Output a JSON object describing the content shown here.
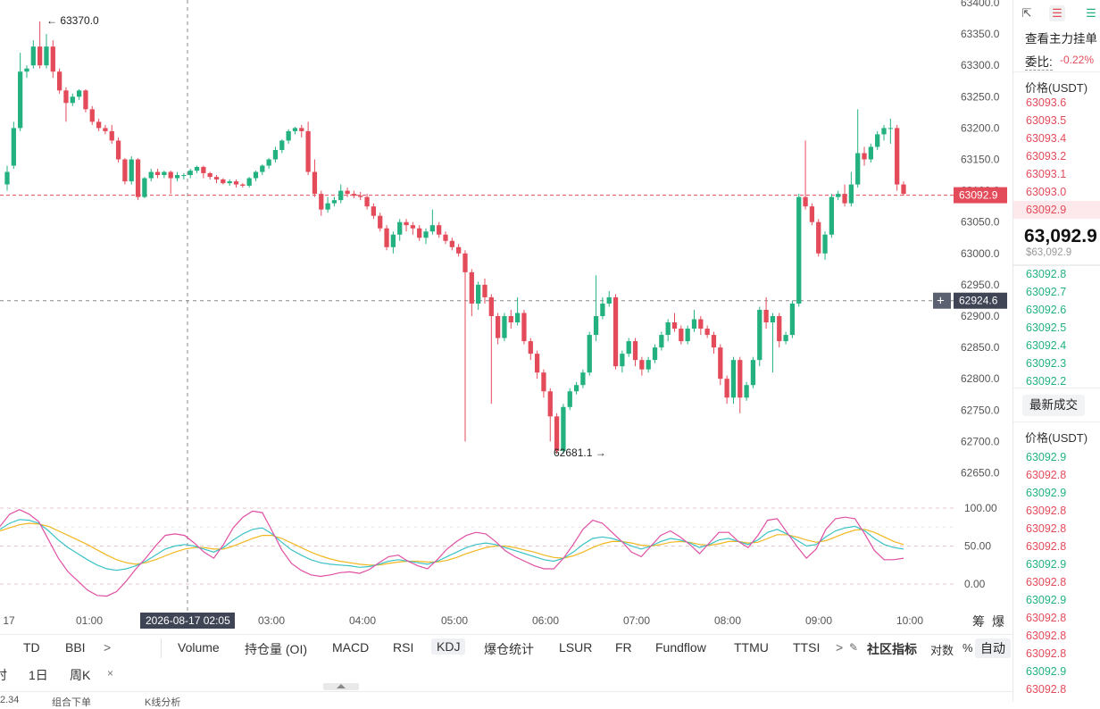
{
  "chart_data": {
    "type": "candlestick",
    "y_range": [
      62620,
      63400
    ],
    "y_ticks": [
      "63400.0",
      "63350.0",
      "63300.0",
      "63250.0",
      "63200.0",
      "63150.0",
      "63100.0",
      "63050.0",
      "63000.0",
      "62950.0",
      "62900.0",
      "62850.0",
      "62800.0",
      "62750.0",
      "62700.0",
      "62650.0"
    ],
    "x_ticks": [
      "17",
      "01:00",
      "02:00",
      "03:00",
      "04:00",
      "05:00",
      "06:00",
      "07:00",
      "08:00",
      "09:00",
      "10:00"
    ],
    "crosshair_time": "2026-08-17 02:05",
    "crosshair_price": "62924.6",
    "last_price_label": "63092.9",
    "high_label": "63370.0",
    "low_label": "62681.1",
    "candles": [
      [
        63110,
        63130,
        63100,
        63140
      ],
      [
        63140,
        63200,
        63135,
        63210
      ],
      [
        63200,
        63290,
        63195,
        63320
      ],
      [
        63290,
        63295,
        63280,
        63300
      ],
      [
        63300,
        63330,
        63295,
        63340
      ],
      [
        63330,
        63300,
        63295,
        63370
      ],
      [
        63300,
        63330,
        63295,
        63350
      ],
      [
        63330,
        63290,
        63280,
        63340
      ],
      [
        63290,
        63260,
        63255,
        63295
      ],
      [
        63260,
        63240,
        63210,
        63265
      ],
      [
        63240,
        63250,
        63235,
        63255
      ],
      [
        63250,
        63260,
        63245,
        63262
      ],
      [
        63260,
        63230,
        63225,
        63262
      ],
      [
        63230,
        63210,
        63205,
        63235
      ],
      [
        63210,
        63200,
        63195,
        63215
      ],
      [
        63200,
        63195,
        63190,
        63205
      ],
      [
        63195,
        63180,
        63175,
        63205
      ],
      [
        63180,
        63150,
        63145,
        63185
      ],
      [
        63150,
        63115,
        63110,
        63152
      ],
      [
        63115,
        63150,
        63110,
        63155
      ],
      [
        63150,
        63090,
        63085,
        63152
      ],
      [
        63090,
        63120,
        63088,
        63122
      ],
      [
        63120,
        63130,
        63115,
        63135
      ],
      [
        63130,
        63125,
        63120,
        63135
      ],
      [
        63125,
        63130,
        63120,
        63132
      ],
      [
        63130,
        63120,
        63095,
        63132
      ],
      [
        63120,
        63125,
        63115,
        63130
      ],
      [
        63125,
        63125,
        63118,
        63128
      ],
      [
        63125,
        63132,
        63120,
        63135
      ],
      [
        63132,
        63138,
        63128,
        63140
      ],
      [
        63138,
        63128,
        63120,
        63140
      ],
      [
        63128,
        63122,
        63118,
        63130
      ],
      [
        63122,
        63118,
        63112,
        63125
      ],
      [
        63118,
        63112,
        63110,
        63120
      ],
      [
        63112,
        63115,
        63108,
        63118
      ],
      [
        63115,
        63110,
        63105,
        63118
      ],
      [
        63110,
        63108,
        63105,
        63112
      ],
      [
        63108,
        63120,
        63105,
        63122
      ],
      [
        63120,
        63130,
        63115,
        63132
      ],
      [
        63130,
        63140,
        63125,
        63142
      ],
      [
        63140,
        63150,
        63135,
        63152
      ],
      [
        63150,
        63165,
        63145,
        63170
      ],
      [
        63165,
        63180,
        63160,
        63182
      ],
      [
        63180,
        63195,
        63175,
        63198
      ],
      [
        63195,
        63200,
        63190,
        63202
      ],
      [
        63200,
        63195,
        63185,
        63205
      ],
      [
        63195,
        63130,
        63125,
        63210
      ],
      [
        63130,
        63095,
        63090,
        63150
      ],
      [
        63095,
        63070,
        63060,
        63100
      ],
      [
        63070,
        63080,
        63065,
        63090
      ],
      [
        63080,
        63085,
        63075,
        63090
      ],
      [
        63085,
        63100,
        63080,
        63110
      ],
      [
        63100,
        63095,
        63090,
        63105
      ],
      [
        63095,
        63092,
        63088,
        63100
      ],
      [
        63092,
        63090,
        63085,
        63098
      ],
      [
        63090,
        63075,
        63070,
        63095
      ],
      [
        63075,
        63060,
        63055,
        63080
      ],
      [
        63060,
        63040,
        63035,
        63065
      ],
      [
        63040,
        63010,
        63005,
        63045
      ],
      [
        63010,
        63030,
        63000,
        63035
      ],
      [
        63030,
        63050,
        63020,
        63055
      ],
      [
        63050,
        63045,
        63035,
        63055
      ],
      [
        63045,
        63040,
        63030,
        63050
      ],
      [
        63040,
        63025,
        63020,
        63045
      ],
      [
        63025,
        63035,
        63015,
        63040
      ],
      [
        63035,
        63045,
        63030,
        63070
      ],
      [
        63045,
        63030,
        63025,
        63050
      ],
      [
        63030,
        63020,
        63015,
        63035
      ],
      [
        63020,
        63010,
        63005,
        63025
      ],
      [
        63010,
        63000,
        62995,
        63015
      ],
      [
        63000,
        62970,
        62700,
        63005
      ],
      [
        62970,
        62920,
        62900,
        62975
      ],
      [
        62920,
        62950,
        62910,
        62955
      ],
      [
        62950,
        62930,
        62920,
        62960
      ],
      [
        62930,
        62900,
        62760,
        62935
      ],
      [
        62900,
        62865,
        62855,
        62905
      ],
      [
        62865,
        62900,
        62860,
        62905
      ],
      [
        62900,
        62890,
        62880,
        62910
      ],
      [
        62890,
        62905,
        62885,
        62930
      ],
      [
        62905,
        62860,
        62855,
        62910
      ],
      [
        62860,
        62840,
        62830,
        62865
      ],
      [
        62840,
        62810,
        62800,
        62845
      ],
      [
        62810,
        62780,
        62770,
        62815
      ],
      [
        62780,
        62740,
        62700,
        62785
      ],
      [
        62740,
        62685,
        62680,
        62745
      ],
      [
        62685,
        62755,
        62680,
        62760
      ],
      [
        62755,
        62780,
        62750,
        62785
      ],
      [
        62780,
        62790,
        62775,
        62795
      ],
      [
        62790,
        62810,
        62785,
        62815
      ],
      [
        62810,
        62870,
        62805,
        62875
      ],
      [
        62870,
        62900,
        62860,
        62965
      ],
      [
        62900,
        62920,
        62895,
        62930
      ],
      [
        62920,
        62930,
        62915,
        62940
      ],
      [
        62930,
        62820,
        62815,
        62935
      ],
      [
        62820,
        62840,
        62810,
        62845
      ],
      [
        62840,
        62860,
        62835,
        62865
      ],
      [
        62860,
        62830,
        62820,
        62865
      ],
      [
        62830,
        62815,
        62805,
        62835
      ],
      [
        62815,
        62830,
        62810,
        62835
      ],
      [
        62830,
        62850,
        62825,
        62855
      ],
      [
        62850,
        62870,
        62845,
        62875
      ],
      [
        62870,
        62890,
        62860,
        62895
      ],
      [
        62890,
        62880,
        62875,
        62905
      ],
      [
        62880,
        62860,
        62855,
        62885
      ],
      [
        62860,
        62880,
        62855,
        62885
      ],
      [
        62880,
        62895,
        62875,
        62910
      ],
      [
        62895,
        62880,
        62870,
        62900
      ],
      [
        62880,
        62870,
        62865,
        62885
      ],
      [
        62870,
        62850,
        62840,
        62875
      ],
      [
        62850,
        62800,
        62790,
        62855
      ],
      [
        62800,
        62770,
        62760,
        62805
      ],
      [
        62770,
        62830,
        62760,
        62835
      ],
      [
        62830,
        62770,
        62745,
        62835
      ],
      [
        62770,
        62790,
        62765,
        62795
      ],
      [
        62790,
        62830,
        62785,
        62835
      ],
      [
        62830,
        62910,
        62820,
        62915
      ],
      [
        62910,
        62890,
        62880,
        62930
      ],
      [
        62890,
        62900,
        62810,
        62905
      ],
      [
        62900,
        62860,
        62850,
        62905
      ],
      [
        62860,
        62870,
        62855,
        62875
      ],
      [
        62870,
        62920,
        62865,
        62925
      ],
      [
        62920,
        63090,
        62915,
        63095
      ],
      [
        63090,
        63075,
        63070,
        63180
      ],
      [
        63075,
        63050,
        63045,
        63080
      ],
      [
        63050,
        63000,
        62995,
        63055
      ],
      [
        63000,
        63030,
        62990,
        63035
      ],
      [
        63030,
        63090,
        63025,
        63095
      ],
      [
        63090,
        63095,
        63085,
        63100
      ],
      [
        63095,
        63080,
        63075,
        63110
      ],
      [
        63080,
        63110,
        63075,
        63130
      ],
      [
        63110,
        63160,
        63105,
        63230
      ],
      [
        63160,
        63150,
        63140,
        63170
      ],
      [
        63150,
        63170,
        63145,
        63175
      ],
      [
        63170,
        63190,
        63165,
        63195
      ],
      [
        63190,
        63200,
        63180,
        63205
      ],
      [
        63200,
        63200,
        63175,
        63215
      ],
      [
        63200,
        63110,
        63100,
        63205
      ],
      [
        63110,
        63095,
        63092,
        63115
      ]
    ],
    "kdj": {
      "ticks": [
        "100.00",
        "50.00",
        "0.00"
      ],
      "k": [
        72,
        80,
        85,
        84,
        80,
        70,
        58,
        48,
        40,
        32,
        25,
        20,
        18,
        20,
        24,
        30,
        38,
        46,
        50,
        52,
        50,
        46,
        42,
        48,
        58,
        66,
        72,
        74,
        66,
        55,
        45,
        38,
        32,
        28,
        26,
        25,
        24,
        22,
        23,
        26,
        30,
        32,
        30,
        28,
        26,
        30,
        36,
        42,
        48,
        52,
        54,
        52,
        48,
        44,
        40,
        36,
        32,
        30,
        34,
        42,
        52,
        60,
        62,
        60,
        56,
        50,
        46,
        50,
        56,
        60,
        58,
        54,
        48,
        52,
        58,
        60,
        56,
        52,
        58,
        68,
        72,
        66,
        58,
        50,
        52,
        62,
        70,
        74,
        76,
        70,
        60,
        52,
        48,
        46
      ],
      "d": [
        70,
        74,
        78,
        80,
        79,
        76,
        70,
        64,
        58,
        52,
        45,
        38,
        32,
        28,
        26,
        28,
        32,
        37,
        42,
        46,
        48,
        48,
        46,
        46,
        50,
        55,
        60,
        64,
        64,
        60,
        54,
        48,
        42,
        37,
        33,
        30,
        28,
        26,
        25,
        25,
        27,
        29,
        30,
        30,
        29,
        29,
        31,
        35,
        40,
        44,
        48,
        50,
        50,
        48,
        45,
        42,
        38,
        35,
        34,
        37,
        42,
        48,
        53,
        56,
        56,
        54,
        51,
        50,
        52,
        55,
        56,
        55,
        52,
        51,
        53,
        56,
        56,
        54,
        55,
        60,
        65,
        65,
        62,
        58,
        55,
        57,
        62,
        67,
        71,
        72,
        68,
        62,
        56,
        52
      ],
      "j": [
        76,
        92,
        98,
        92,
        82,
        58,
        34,
        16,
        4,
        -8,
        -15,
        -16,
        -10,
        4,
        20,
        34,
        50,
        64,
        66,
        64,
        54,
        42,
        34,
        52,
        74,
        88,
        96,
        94,
        70,
        45,
        27,
        18,
        12,
        10,
        12,
        15,
        16,
        14,
        19,
        28,
        36,
        38,
        30,
        24,
        20,
        32,
        46,
        56,
        64,
        68,
        66,
        56,
        44,
        36,
        30,
        24,
        20,
        20,
        34,
        52,
        72,
        84,
        80,
        68,
        56,
        42,
        36,
        50,
        64,
        70,
        62,
        52,
        40,
        54,
        68,
        68,
        56,
        48,
        64,
        84,
        86,
        68,
        50,
        34,
        46,
        72,
        86,
        88,
        86,
        66,
        44,
        32,
        32,
        34
      ]
    }
  },
  "indicators": {
    "left_items": [
      "TD",
      "BBI",
      ">"
    ],
    "items": [
      "Volume",
      "持仓量 (OI)",
      "MACD",
      "RSI",
      "KDJ",
      "爆仓统计",
      "LSUR",
      "FR",
      "Fundflow",
      "TTMU",
      "TTSI"
    ],
    "more": ">",
    "community": "社区指标",
    "scale_log": "对数",
    "scale_pct": "%",
    "scale_auto": "自动",
    "right_tools": [
      "筹",
      "爆"
    ]
  },
  "timeframes": [
    "时",
    "1日",
    "周K",
    "×"
  ],
  "bottom_cut": [
    "2.34",
    "组合下单",
    "K线分析"
  ],
  "side": {
    "view_label": "查看主力挂单",
    "ratio_label": "委比:",
    "ratio_value": "-0.22%",
    "price_header": "价格(USDT)",
    "asks": [
      "63093.6",
      "63093.5",
      "63093.4",
      "63093.2",
      "63093.1",
      "63093.0",
      "63092.9"
    ],
    "last_big": "63,092.9",
    "last_small": "$63,092.9",
    "bids": [
      "63092.8",
      "63092.7",
      "63092.6",
      "63092.5",
      "63092.4",
      "63092.3",
      "63092.2"
    ],
    "trades_button": "最新成交",
    "trades_header": "价格(USDT)",
    "trades": [
      {
        "p": "63092.9",
        "c": "green"
      },
      {
        "p": "63092.8",
        "c": "red"
      },
      {
        "p": "63092.9",
        "c": "green"
      },
      {
        "p": "63092.8",
        "c": "red"
      },
      {
        "p": "63092.8",
        "c": "red"
      },
      {
        "p": "63092.8",
        "c": "red"
      },
      {
        "p": "63092.9",
        "c": "green"
      },
      {
        "p": "63092.8",
        "c": "red"
      },
      {
        "p": "63092.9",
        "c": "green"
      },
      {
        "p": "63092.8",
        "c": "red"
      },
      {
        "p": "63092.8",
        "c": "red"
      },
      {
        "p": "63092.8",
        "c": "red"
      },
      {
        "p": "63092.9",
        "c": "green"
      },
      {
        "p": "63092.8",
        "c": "red"
      }
    ]
  },
  "colors": {
    "up": "#23b27f",
    "down": "#e44b5a",
    "k": "#e04fa3",
    "d": "#f2b720",
    "j_line": "#3cc2c6"
  }
}
